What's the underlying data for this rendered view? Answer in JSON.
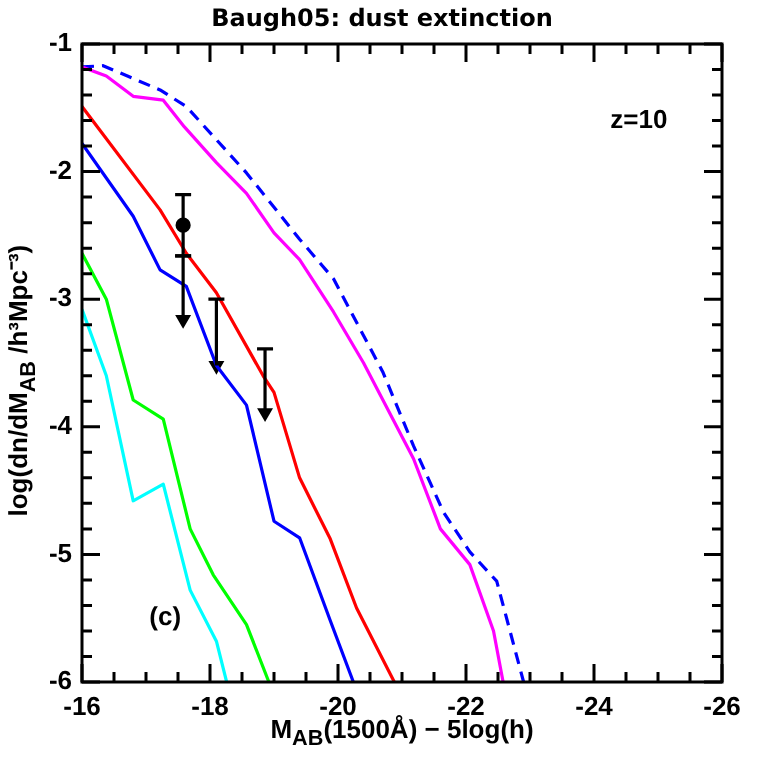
{
  "chart_data": {
    "type": "line",
    "title": "Baugh05: dust extinction",
    "xlabel": "M$_{AB}$(1500Å) − 5log(h)",
    "ylabel": "log(dn/dM$_{AB}$ /h³Mpc⁻³)",
    "annotations": [
      "z=10",
      "(c)"
    ],
    "xlim": [
      -16,
      -26
    ],
    "ylim": [
      -6,
      -1
    ],
    "xticks": [
      -16,
      {
        "value": -16.5,
        "label": null
      },
      {
        "value": -17,
        "label": null
      },
      {
        "value": -17.5,
        "label": null
      },
      -18,
      {
        "value": -18.5,
        "label": null
      },
      {
        "value": -19,
        "label": null
      },
      {
        "value": -19.5,
        "label": null
      },
      -20,
      {
        "value": -20.5,
        "label": null
      },
      {
        "value": -21,
        "label": null
      },
      {
        "value": -21.5,
        "label": null
      },
      -22,
      {
        "value": -22.5,
        "label": null
      },
      {
        "value": -23,
        "label": null
      },
      {
        "value": -23.5,
        "label": null
      },
      -24,
      {
        "value": -24.5,
        "label": null
      },
      {
        "value": -25,
        "label": null
      },
      {
        "value": -25.5,
        "label": null
      },
      -26
    ],
    "yticks": [
      -6,
      {
        "value": -5.8,
        "label": null
      },
      {
        "value": -5.6,
        "label": null
      },
      {
        "value": -5.4,
        "label": null
      },
      {
        "value": -5.2,
        "label": null
      },
      -5,
      {
        "value": -4.8,
        "label": null
      },
      {
        "value": -4.6,
        "label": null
      },
      {
        "value": -4.4,
        "label": null
      },
      {
        "value": -4.2,
        "label": null
      },
      -4,
      {
        "value": -3.8,
        "label": null
      },
      {
        "value": -3.6,
        "label": null
      },
      {
        "value": -3.4,
        "label": null
      },
      {
        "value": -3.2,
        "label": null
      },
      -3,
      {
        "value": -2.8,
        "label": null
      },
      {
        "value": -2.6,
        "label": null
      },
      {
        "value": -2.4,
        "label": null
      },
      {
        "value": -2.2,
        "label": null
      },
      -2,
      {
        "value": -1.8,
        "label": null
      },
      {
        "value": -1.6,
        "label": null
      },
      {
        "value": -1.4,
        "label": null
      },
      {
        "value": -1.2,
        "label": null
      },
      -1
    ],
    "grid": false,
    "legend": false,
    "marker": "none",
    "line_style": "solid",
    "series": [
      {
        "color": "#ff00ff",
        "x": [
          -16.0,
          -16.38,
          -16.8,
          -17.27,
          -17.6,
          -18.1,
          -18.57,
          -19.0,
          -19.4,
          -19.93,
          -20.4,
          -21.18,
          -21.6,
          -22.06,
          -22.43,
          -22.58
        ],
        "values": [
          -1.18,
          -1.25,
          -1.41,
          -1.44,
          -1.65,
          -1.93,
          -2.17,
          -2.48,
          -2.69,
          -3.1,
          -3.5,
          -4.25,
          -4.8,
          -5.08,
          -5.6,
          -6.0
        ]
      },
      {
        "color": "#0000ff",
        "line_style": "dashed",
        "x": [
          -16.0,
          -16.33,
          -17.22,
          -17.63,
          -18.57,
          -19.4,
          -19.93,
          -20.7,
          -21.18,
          -21.65,
          -22.06,
          -22.48,
          -22.9
        ],
        "values": [
          -1.18,
          -1.17,
          -1.36,
          -1.49,
          -2.01,
          -2.53,
          -2.84,
          -3.57,
          -4.15,
          -4.67,
          -4.98,
          -5.21,
          -6.0
        ]
      },
      {
        "color": "#ff0000",
        "x": [
          -16.0,
          -17.22,
          -17.63,
          -18.1,
          -18.83,
          -19.0,
          -19.4,
          -19.88,
          -20.29,
          -20.88
        ],
        "values": [
          -1.49,
          -2.3,
          -2.64,
          -2.95,
          -3.6,
          -3.73,
          -4.4,
          -4.88,
          -5.42,
          -6.0
        ]
      },
      {
        "color": "#0000ff",
        "x": [
          -16.0,
          -16.8,
          -17.22,
          -17.63,
          -18.1,
          -18.57,
          -19.0,
          -19.4,
          -19.88,
          -20.24
        ],
        "values": [
          -1.78,
          -2.35,
          -2.77,
          -2.9,
          -3.52,
          -3.83,
          -4.74,
          -4.87,
          -5.52,
          -6.0
        ]
      },
      {
        "color": "#00ff00",
        "x": [
          -16.0,
          -16.38,
          -16.8,
          -17.27,
          -17.69,
          -18.05,
          -18.57,
          -18.92
        ],
        "values": [
          -2.64,
          -3.0,
          -3.79,
          -3.94,
          -4.8,
          -5.16,
          -5.55,
          -6.0
        ]
      },
      {
        "color": "#00ffff",
        "x": [
          -16.0,
          -16.38,
          -16.8,
          -17.27,
          -17.69,
          -18.1,
          -18.26
        ],
        "values": [
          -3.08,
          -3.6,
          -4.58,
          -4.45,
          -5.28,
          -5.68,
          -6.0
        ]
      },
      {
        "type": "scatter",
        "color": "#000000",
        "marker": "circle",
        "x": [
          -17.58
        ],
        "values": [
          -2.42
        ],
        "errors": [
          [
            -2.66,
            -2.18
          ]
        ]
      },
      {
        "type": "scatter",
        "color": "#000000",
        "marker": "triangle",
        "x": [
          -17.58,
          -18.1,
          -18.86
        ],
        "values": [
          -3.16,
          -3.52,
          -3.89
        ],
        "errors": [
          [
            -3.16,
            -2.66
          ],
          [
            -3.52,
            -3.0
          ],
          [
            -3.89,
            -3.39
          ]
        ]
      }
    ]
  }
}
